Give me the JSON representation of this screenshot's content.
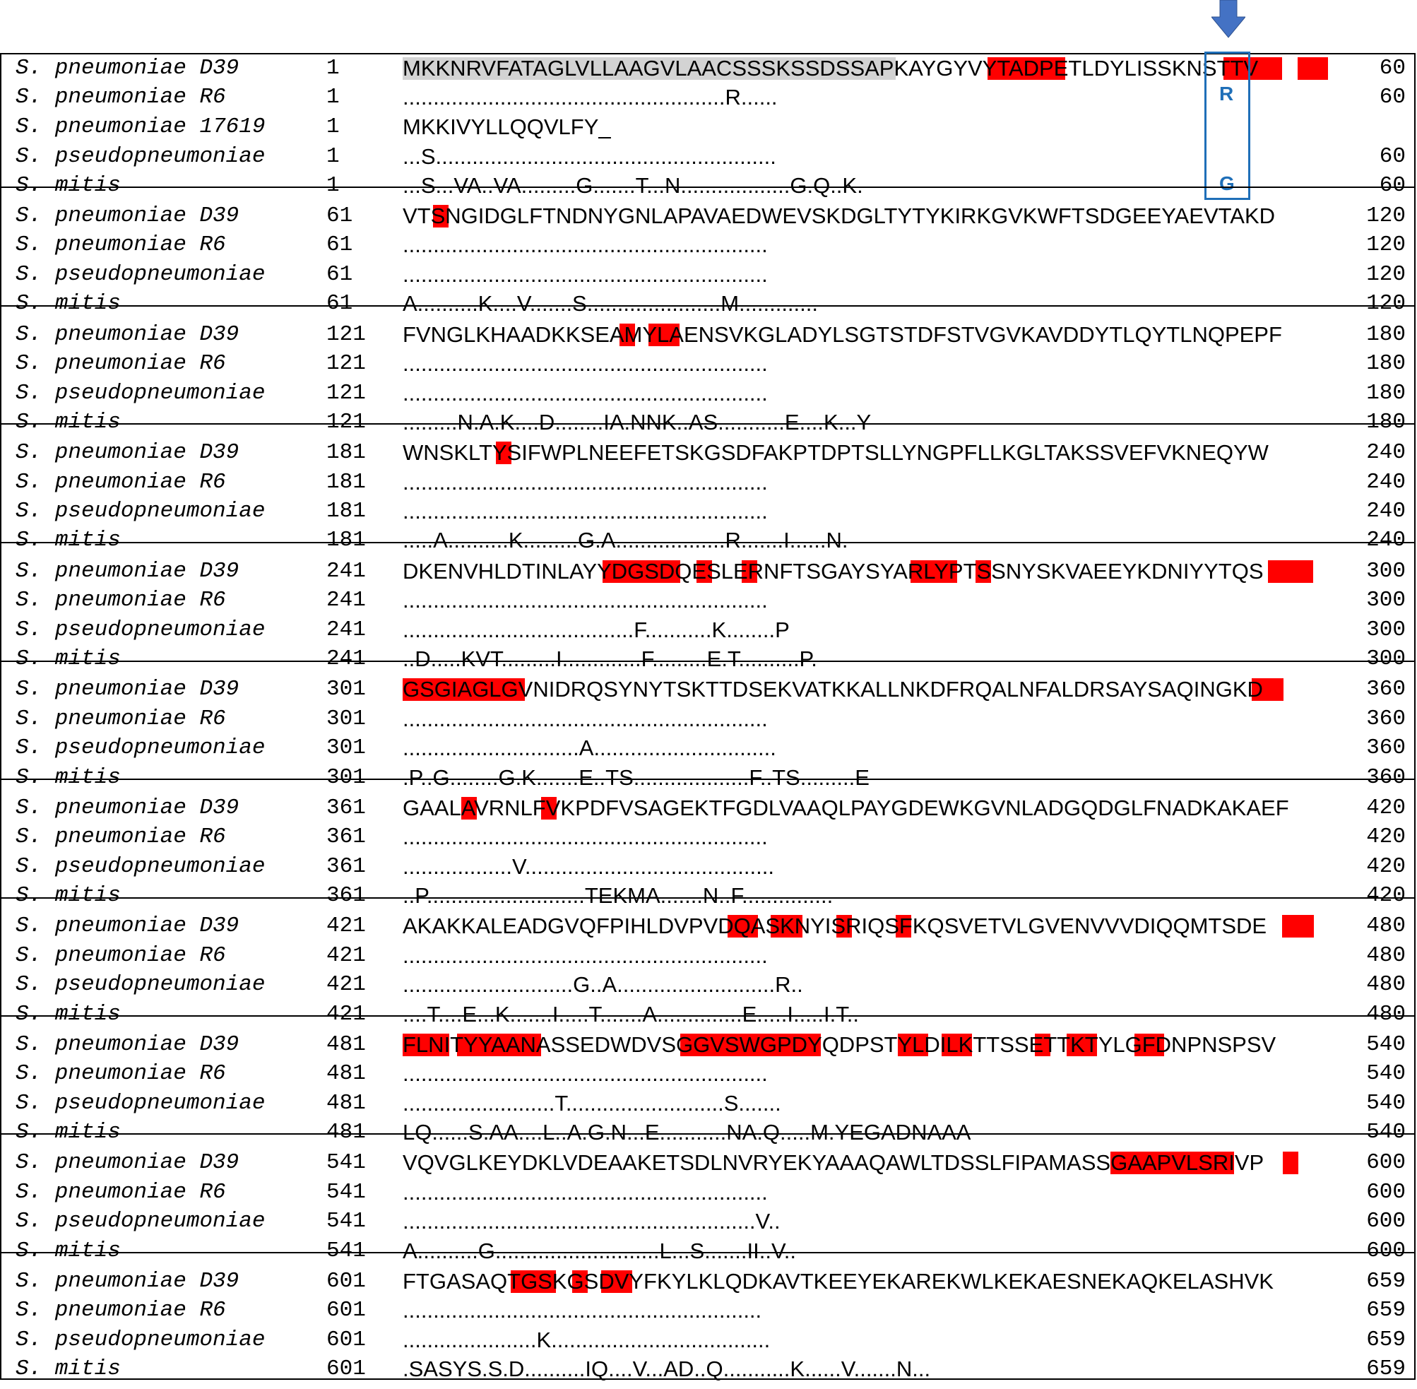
{
  "alignment": {
    "blocks": [
      {
        "rows": [
          {
            "name": "S. pneumoniae D39",
            "start": "1",
            "seq": "MKKNRVFATAGLVLLAAGVLAACSSSKSSDSSAPKAYGYVYTADPETLDYLISSKNSTTV",
            "end": "60"
          },
          {
            "name": "S. pneumoniae R6",
            "start": "1",
            "seq": ".....................................................R......",
            "end": "60"
          },
          {
            "name": "S. pneumoniae 17619",
            "start": "1",
            "seq": "MKKIVYLLQQVLFY_",
            "end": ""
          },
          {
            "name": "S. pseudopneumoniae",
            "start": "1",
            "seq": "...S........................................................",
            "end": "60"
          },
          {
            "name": "S. mitis",
            "start": "1",
            "seq": "...S...VA..VA.........G.......T...N..................G.Q..K.",
            "end": "60"
          }
        ]
      },
      {
        "rows": [
          {
            "name": "S. pneumoniae D39",
            "start": "61",
            "seq": "VTSNGIDGLFTNDNYGNLAPAVAEDWEVSKDGLTYTYKIRKGVKWFTSDGEEYAEVTAKD",
            "end": "120"
          },
          {
            "name": "S. pneumoniae R6",
            "start": "61",
            "seq": "............................................................",
            "end": "120"
          },
          {
            "name": "S. pseudopneumoniae",
            "start": "61",
            "seq": "............................................................",
            "end": "120"
          },
          {
            "name": "S. mitis",
            "start": "61",
            "seq": "A..........K....V.......S......................M.............",
            "end": "120"
          }
        ]
      },
      {
        "rows": [
          {
            "name": "S. pneumoniae D39",
            "start": "121",
            "seq": "FVNGLKHAADKKSEAMYLAENSVKGLADYLSGTSTDFSTVGVKAVDDYTLQYTLNQPEPF",
            "end": "180"
          },
          {
            "name": "S. pneumoniae R6",
            "start": "121",
            "seq": "............................................................",
            "end": "180"
          },
          {
            "name": "S. pseudopneumoniae",
            "start": "121",
            "seq": "............................................................",
            "end": "180"
          },
          {
            "name": "S. mitis",
            "start": "121",
            "seq": ".........N.A.K....D........IA.NNK..AS...........E....K...Y",
            "end": "180"
          }
        ]
      },
      {
        "rows": [
          {
            "name": "S. pneumoniae D39",
            "start": "181",
            "seq": "WNSKLTYSIFWPLNEEFETSKGSDFAKPTDPTSLLYNGPFLLKGLTAKSSVEFVKNEQYW",
            "end": "240"
          },
          {
            "name": "S. pneumoniae R6",
            "start": "181",
            "seq": "............................................................",
            "end": "240"
          },
          {
            "name": "S. pseudopneumoniae",
            "start": "181",
            "seq": "............................................................",
            "end": "240"
          },
          {
            "name": "S. mitis",
            "start": "181",
            "seq": ".....A..........K.........G.A..................R.......I......N.",
            "end": "240"
          }
        ]
      },
      {
        "rows": [
          {
            "name": "S. pneumoniae D39",
            "start": "241",
            "seq": "DKENVHLDTINLAYYDGSDQESLERNFTSGAYSYARLYPTSSNYSKVAEEYKDNIYYTQS",
            "end": "300"
          },
          {
            "name": "S. pneumoniae R6",
            "start": "241",
            "seq": "............................................................",
            "end": "300"
          },
          {
            "name": "S. pseudopneumoniae",
            "start": "241",
            "seq": "......................................F...........K........P",
            "end": "300"
          },
          {
            "name": "S. mitis",
            "start": "241",
            "seq": "..D.....KVT.........I.............F.........E.T..........P.",
            "end": "300"
          }
        ]
      },
      {
        "rows": [
          {
            "name": "S. pneumoniae D39",
            "start": "301",
            "seq": "GSGIAGLGVNIDRQSYNYTSKTTDSEKVATKKALLNKDFRQALNFALDRSAYSAQINGKD",
            "end": "360"
          },
          {
            "name": "S. pneumoniae R6",
            "start": "301",
            "seq": "............................................................",
            "end": "360"
          },
          {
            "name": "S. pseudopneumoniae",
            "start": "301",
            "seq": ".............................A..............................",
            "end": "360"
          },
          {
            "name": "S. mitis",
            "start": "301",
            "seq": ".P..G........G.K.......E..TS...................F..TS.........E",
            "end": "360"
          }
        ]
      },
      {
        "rows": [
          {
            "name": "S. pneumoniae D39",
            "start": "361",
            "seq": "GAALAVRNLFVKPDFVSAGEKTFGDLVAAQLPAYGDEWKGVNLADGQDGLFNADKAKAEF",
            "end": "420"
          },
          {
            "name": "S. pneumoniae R6",
            "start": "361",
            "seq": "............................................................",
            "end": "420"
          },
          {
            "name": "S. pseudopneumoniae",
            "start": "361",
            "seq": "..................V.........................................",
            "end": "420"
          },
          {
            "name": "S. mitis",
            "start": "361",
            "seq": "..P..........................TEKMA.......N..F...............",
            "end": "420"
          }
        ]
      },
      {
        "rows": [
          {
            "name": "S. pneumoniae D39",
            "start": "421",
            "seq": "AKAKKALEADGVQFPIHLDVPVDQASKNYISRIQSFKQSVETVLGVENVVVDIQQMTSDE",
            "end": "480"
          },
          {
            "name": "S. pneumoniae R6",
            "start": "421",
            "seq": "............................................................",
            "end": "480"
          },
          {
            "name": "S. pseudopneumoniae",
            "start": "421",
            "seq": "............................G..A..........................R..",
            "end": "480"
          },
          {
            "name": "S. mitis",
            "start": "421",
            "seq": "....T....E...K.......I.....T.......A..............E.....I.....I.T..",
            "end": "480"
          }
        ]
      },
      {
        "rows": [
          {
            "name": "S. pneumoniae D39",
            "start": "481",
            "seq": "FLNITYYAANASSEDWDVSGGVSWGPDYQDPSTYLDILKTTSSETTKTYLGFDNPNSPSV",
            "end": "540"
          },
          {
            "name": "S. pneumoniae R6",
            "start": "481",
            "seq": "............................................................",
            "end": "540"
          },
          {
            "name": "S. pseudopneumoniae",
            "start": "481",
            "seq": ".........................T..........................S.......",
            "end": "540"
          },
          {
            "name": "S. mitis",
            "start": "481",
            "seq": "LQ......S.AA....L..A.G.N...E...........NA.Q.....M.YEGADNAAA",
            "end": "540"
          }
        ]
      },
      {
        "rows": [
          {
            "name": "S. pneumoniae D39",
            "start": "541",
            "seq": "VQVGLKEYDKLVDEAAKETSDLNVRYEKYAAAQAWLTDSSLFIPAMASSGAAPVLSRIVP",
            "end": "600"
          },
          {
            "name": "S. pneumoniae R6",
            "start": "541",
            "seq": "............................................................",
            "end": "600"
          },
          {
            "name": "S. pseudopneumoniae",
            "start": "541",
            "seq": "..........................................................V..",
            "end": "600"
          },
          {
            "name": "S. mitis",
            "start": "541",
            "seq": "A..........G...........................L...S.......II..V..",
            "end": "600"
          }
        ]
      },
      {
        "rows": [
          {
            "name": "S. pneumoniae D39",
            "start": "601",
            "seq": "FTGASAQTGSKGSDVYFKYLKLQDKAVTKEEYEKAREKWLKEKAESNEKAQKELASHVK",
            "end": "659"
          },
          {
            "name": "S. pneumoniae R6",
            "start": "601",
            "seq": "...........................................................",
            "end": "659"
          },
          {
            "name": "S. pseudopneumoniae",
            "start": "601",
            "seq": "......................K....................................",
            "end": "659"
          },
          {
            "name": "S. mitis",
            "start": "601",
            "seq": ".SASYS.S.D..........IQ....V...AD..Q...........K......V.......N...",
            "end": "659"
          }
        ]
      }
    ],
    "marker_letters": {
      "r6": "R",
      "mitis": "G"
    }
  },
  "colors": {
    "highlight": "#ff0000",
    "signal_peptide": "#d3d3d3",
    "marker": "#1f6fb8"
  },
  "icons": {
    "arrow": "down-arrow-icon"
  }
}
